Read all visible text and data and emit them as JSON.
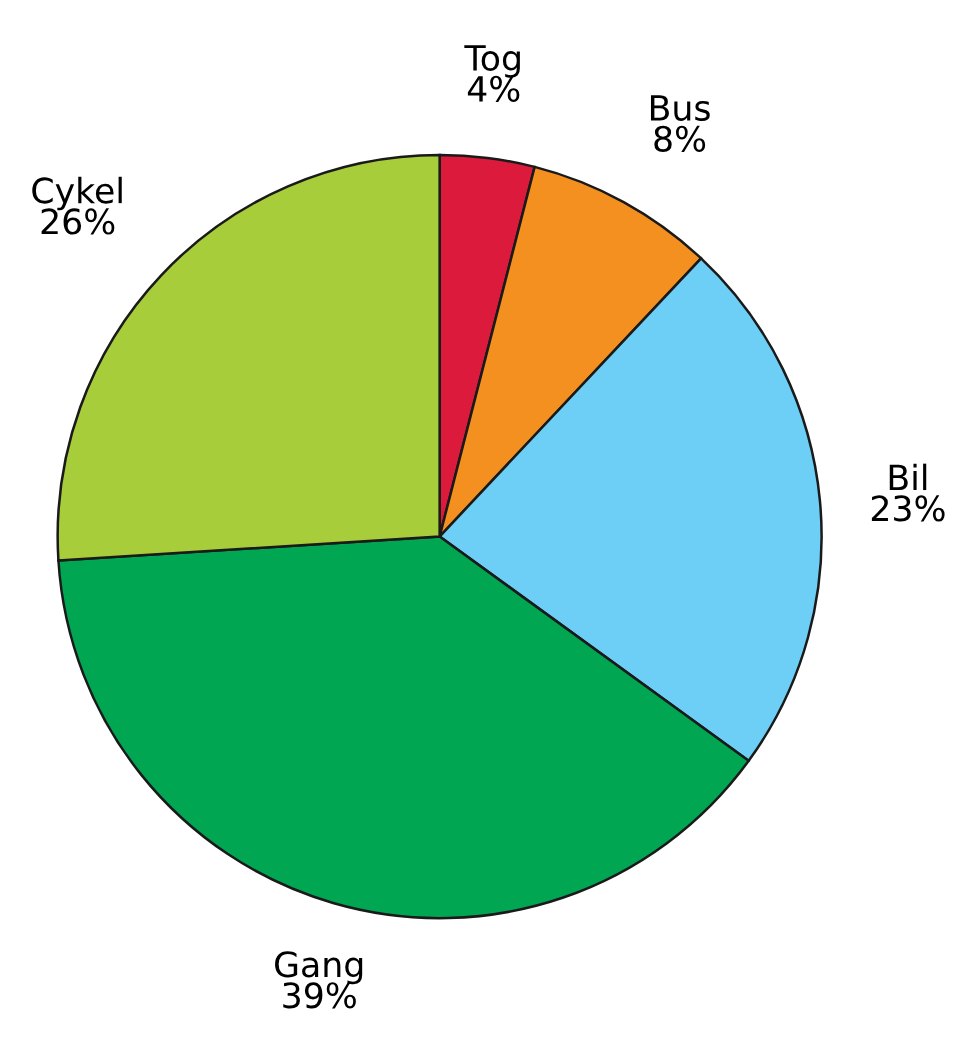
{
  "chart_data": {
    "type": "pie",
    "categories": [
      "Tog",
      "Bus",
      "Bil",
      "Gang",
      "Cykel"
    ],
    "values": [
      4,
      8,
      23,
      39,
      26
    ],
    "value_labels": [
      "4%",
      "8%",
      "23%",
      "39%",
      "26%"
    ],
    "colors": [
      "#dc1a3b",
      "#f39020",
      "#6dcff6",
      "#00a651",
      "#a8cd3b"
    ]
  }
}
